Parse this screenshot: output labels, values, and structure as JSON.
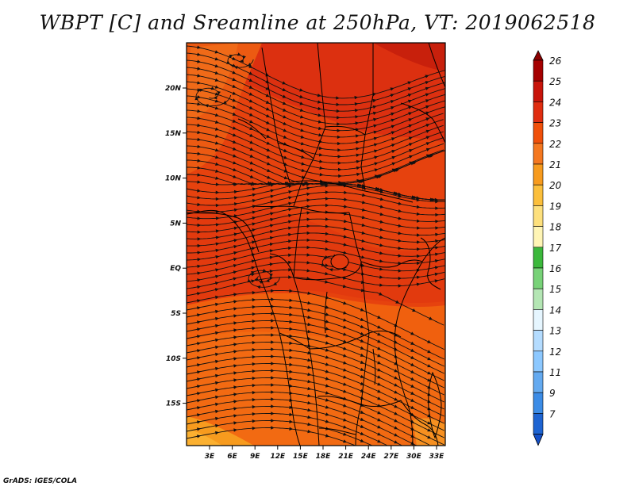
{
  "title": "WBPT [C] and Sreamline at 250hPa, VT: 2019062518",
  "credit": "GrADS: IGES/COLA",
  "map": {
    "lon_labels": [
      "3E",
      "6E",
      "9E",
      "12E",
      "15E",
      "18E",
      "21E",
      "24E",
      "27E",
      "30E",
      "33E"
    ],
    "lat_labels": [
      "20N",
      "15N",
      "10N",
      "5N",
      "EQ",
      "5S",
      "10S",
      "15S"
    ],
    "field": "WBPT [C]",
    "level": "250hPa",
    "valid_time": "2019062518"
  },
  "colorbar": {
    "labels": [
      "26",
      "25",
      "24",
      "23",
      "22",
      "21",
      "20",
      "19",
      "18",
      "17",
      "16",
      "15",
      "14",
      "13",
      "12",
      "11",
      "9",
      "7"
    ],
    "colors": [
      "#a50000",
      "#c8140a",
      "#e02d10",
      "#f0500a",
      "#f47820",
      "#f79b1e",
      "#fbbf3c",
      "#fde07d",
      "#fff5b5",
      "#3cb83c",
      "#78d278",
      "#b4e6b4",
      "#e6f6ff",
      "#b4dcff",
      "#8cc8ff",
      "#64aaf0",
      "#3c8ce6",
      "#1e64d2"
    ],
    "top_color": "#8c0000",
    "bottom_color": "#1450c8"
  }
}
